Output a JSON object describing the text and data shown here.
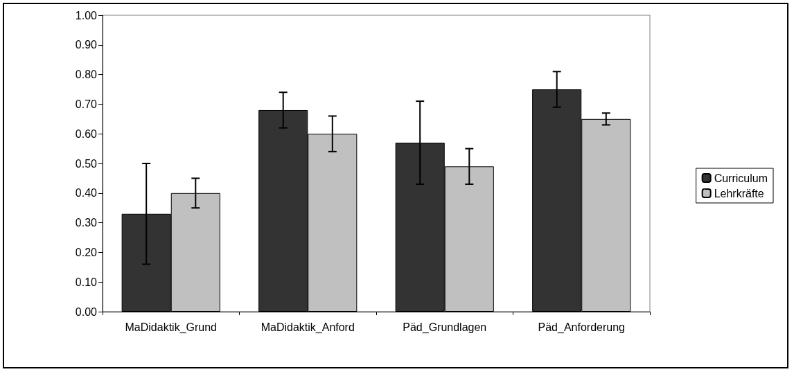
{
  "chart_data": {
    "type": "bar",
    "categories": [
      "MaDidaktik_Grund",
      "MaDidaktik_Anford",
      "Päd_Grundlagen",
      "Päd_Anforderung"
    ],
    "series": [
      {
        "name": "Curriculum",
        "color": "#333333",
        "values": [
          0.33,
          0.68,
          0.57,
          0.75
        ],
        "errors": [
          0.17,
          0.06,
          0.14,
          0.06
        ]
      },
      {
        "name": "Lehrkräfte",
        "color": "#c0c0c0",
        "values": [
          0.4,
          0.6,
          0.49,
          0.65
        ],
        "errors": [
          0.05,
          0.06,
          0.06,
          0.02
        ]
      }
    ],
    "ylim": [
      0,
      1
    ],
    "yticks": [
      {
        "value": 0,
        "label": "0.00"
      },
      {
        "value": 0.1,
        "label": "0.10"
      },
      {
        "value": 0.2,
        "label": "0.20"
      },
      {
        "value": 0.3,
        "label": "0.30"
      },
      {
        "value": 0.4,
        "label": "0.40"
      },
      {
        "value": 0.5,
        "label": "0.50"
      },
      {
        "value": 0.6,
        "label": "0.60"
      },
      {
        "value": 0.7,
        "label": "0.70"
      },
      {
        "value": 0.8,
        "label": "0.80"
      },
      {
        "value": 0.9,
        "label": "0.90"
      },
      {
        "value": 1,
        "label": "1.00"
      }
    ],
    "grid": false,
    "legend": "right"
  }
}
